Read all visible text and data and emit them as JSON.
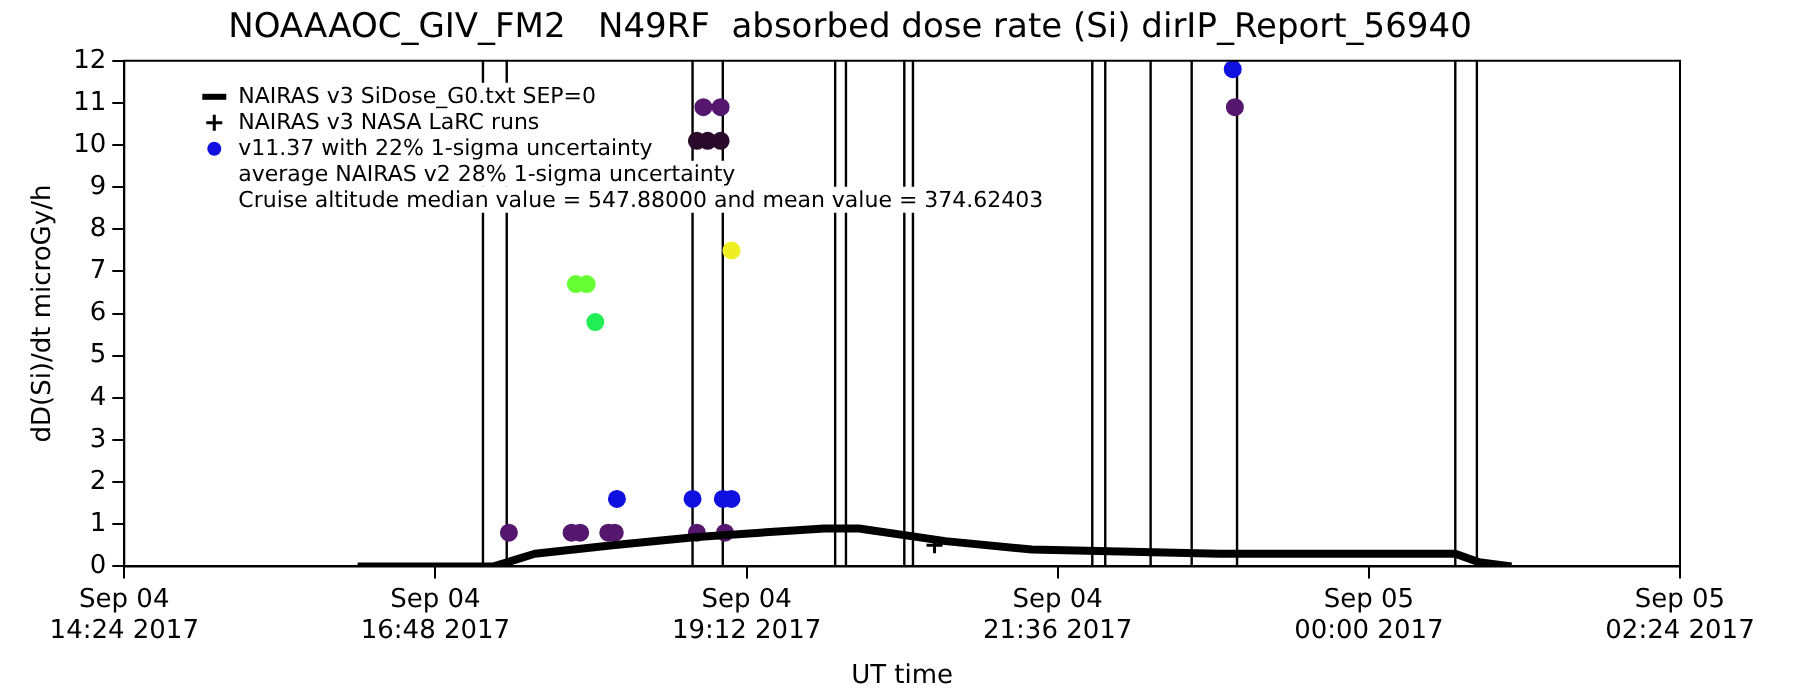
{
  "chart_data": {
    "type": "scatter",
    "title": "NOAAAOC_GIV_FM2   N49RF  absorbed dose rate (Si) dirIP_Report_56940",
    "xlabel": "UT time",
    "ylabel": "dD(Si)/dt microGy/h",
    "xlim": [
      "2017-09-04T14:24",
      "2017-09-05T02:24"
    ],
    "xticks": [
      {
        "value": "2017-09-04T14:24",
        "label": "Sep 04\n14:24 2017"
      },
      {
        "value": "2017-09-04T16:48",
        "label": "Sep 04\n16:48 2017"
      },
      {
        "value": "2017-09-04T19:12",
        "label": "Sep 04\n19:12 2017"
      },
      {
        "value": "2017-09-04T21:36",
        "label": "Sep 04\n21:36 2017"
      },
      {
        "value": "2017-09-05T00:00",
        "label": "Sep 05\n00:00 2017"
      },
      {
        "value": "2017-09-05T02:24",
        "label": "Sep 05\n02:24 2017"
      }
    ],
    "ylim": [
      0,
      12
    ],
    "yticks": [
      0,
      1,
      2,
      3,
      4,
      5,
      6,
      7,
      8,
      9,
      10,
      11,
      12
    ],
    "legend": "top left",
    "series": [
      {
        "name": "NAIRAS v3 SiDose_G0.txt SEP=0",
        "type": "line",
        "marker": "none",
        "color": "#000000",
        "x": [
          "2017-09-04T16:12",
          "2017-09-04T17:15",
          "2017-09-04T17:34",
          "2017-09-04T18:10",
          "2017-09-04T18:49",
          "2017-09-04T19:48",
          "2017-09-04T20:04",
          "2017-09-04T20:44",
          "2017-09-04T21:24",
          "2017-09-04T22:51",
          "2017-09-04T23:00",
          "2017-09-05T00:06",
          "2017-09-05T00:40",
          "2017-09-05T00:51",
          "2017-09-05T01:06"
        ],
        "values": [
          0,
          0,
          0.3,
          0.5,
          0.7,
          0.9,
          0.9,
          0.6,
          0.4,
          0.3,
          0.3,
          0.3,
          0.3,
          0.1,
          0
        ]
      },
      {
        "name": "NAIRAS v3 NASA LaRC runs",
        "marker": "cross",
        "color": "#000000",
        "x": [
          "2017-09-04T20:39"
        ],
        "values": [
          0.5
        ]
      },
      {
        "name": "v11.37 with 22% 1-sigma uncertainty",
        "marker": "circle",
        "color": "#1010e0",
        "x": [
          "2017-09-04T17:22",
          "2017-09-04T17:51",
          "2017-09-04T17:55",
          "2017-09-04T17:53",
          "2017-09-04T17:58",
          "2017-09-04T18:02",
          "2017-09-04T18:08",
          "2017-09-04T18:11",
          "2017-09-04T18:12",
          "2017-09-04T18:47",
          "2017-09-04T18:49",
          "2017-09-04T18:49",
          "2017-09-04T18:54",
          "2017-09-04T19:00",
          "2017-09-04T18:52",
          "2017-09-04T19:00",
          "2017-09-04T19:02",
          "2017-09-04T19:01",
          "2017-09-04T19:05",
          "2017-09-04T19:05",
          "2017-09-04T22:57",
          "2017-09-04T22:58"
        ],
        "values": [
          0.8,
          0.8,
          0.8,
          6.7,
          6.7,
          5.8,
          0.8,
          0.8,
          1.6,
          1.6,
          0.8,
          10.1,
          10.1,
          10.1,
          10.9,
          10.9,
          0.8,
          1.6,
          1.6,
          7.5,
          11.8,
          10.9
        ],
        "colors": [
          "#55186e",
          "#55186e",
          "#55186e",
          "#66ff33",
          "#66ff33",
          "#22ee55",
          "#55186e",
          "#55186e",
          "#1010e0",
          "#1010e0",
          "#55186e",
          "#2a0a2a",
          "#2a0a2a",
          "#2a0a2a",
          "#55186e",
          "#55186e",
          "#55186e",
          "#1010e0",
          "#1010e0",
          "#eeee22",
          "#1010e0",
          "#55186e"
        ]
      }
    ],
    "ref_lines": [
      {
        "axis": "x",
        "value": "2017-09-04T17:10",
        "color": "#000000"
      },
      {
        "axis": "x",
        "value": "2017-09-04T17:21",
        "color": "#000000"
      },
      {
        "axis": "x",
        "value": "2017-09-04T18:47",
        "color": "#000000"
      },
      {
        "axis": "x",
        "value": "2017-09-04T19:01",
        "color": "#000000"
      },
      {
        "axis": "x",
        "value": "2017-09-04T19:53",
        "color": "#000000"
      },
      {
        "axis": "x",
        "value": "2017-09-04T19:58",
        "color": "#000000"
      },
      {
        "axis": "x",
        "value": "2017-09-04T20:25",
        "color": "#000000"
      },
      {
        "axis": "x",
        "value": "2017-09-04T20:29",
        "color": "#000000"
      },
      {
        "axis": "x",
        "value": "2017-09-04T21:52",
        "color": "#000000"
      },
      {
        "axis": "x",
        "value": "2017-09-04T21:58",
        "color": "#000000"
      },
      {
        "axis": "x",
        "value": "2017-09-04T22:19",
        "color": "#000000"
      },
      {
        "axis": "x",
        "value": "2017-09-04T22:38",
        "color": "#000000"
      },
      {
        "axis": "x",
        "value": "2017-09-04T22:59",
        "color": "#000000"
      },
      {
        "axis": "x",
        "value": "2017-09-05T00:40",
        "color": "#000000"
      },
      {
        "axis": "x",
        "value": "2017-09-05T00:50",
        "color": "#000000"
      }
    ],
    "annotations": [
      "average NAIRAS v2 28% 1-sigma uncertainty",
      "Cruise altitude median value = 547.88000 and mean value = 374.62403"
    ]
  }
}
